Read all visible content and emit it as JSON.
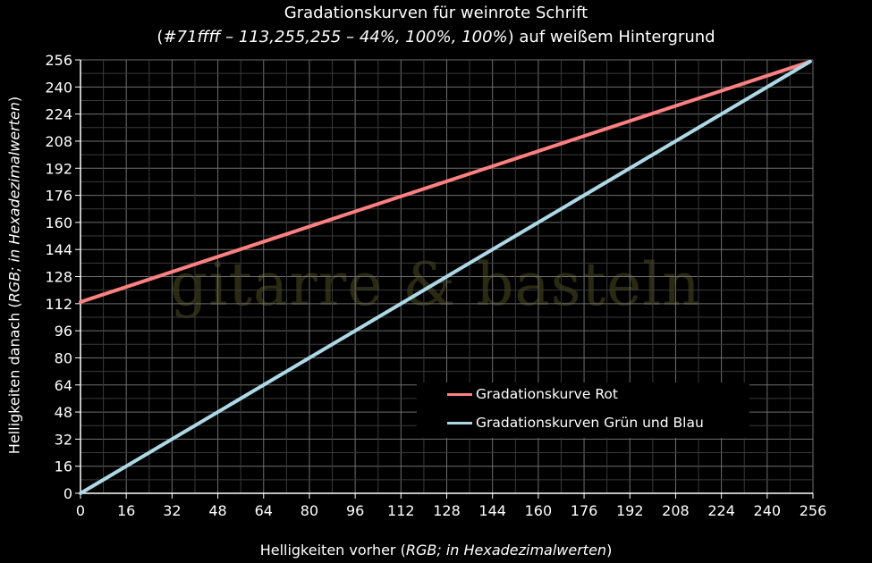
{
  "title_line1": "Gradationskurven für weinrote Schrift",
  "title_line2_prefix": "(",
  "title_line2_italic": "#71ffff – 113,255,255 – 44%, 100%, 100%",
  "title_line2_suffix": ") auf weißem Hintergrund",
  "watermark": "gitarre & basteln",
  "x_label_plain": "Helligkeiten vorher (",
  "x_label_italic": "RGB; in Hexadezimalwerten",
  "x_label_end": ")",
  "y_label_plain": "Helligkeiten danach (",
  "y_label_italic": "RGB; in Hexadezimalwerten",
  "y_label_end": ")",
  "chart_data": {
    "type": "line",
    "xlim": [
      0,
      256
    ],
    "ylim": [
      0,
      256
    ],
    "x_ticks": [
      0,
      16,
      32,
      48,
      64,
      80,
      96,
      112,
      128,
      144,
      160,
      176,
      192,
      208,
      224,
      240,
      256
    ],
    "y_ticks": [
      0,
      16,
      32,
      48,
      64,
      80,
      96,
      112,
      128,
      144,
      160,
      176,
      192,
      208,
      224,
      240,
      256
    ],
    "grid": true,
    "legend_position": "lower-right",
    "series": [
      {
        "name": "Gradationskurve Rot",
        "color": "#ff8080",
        "x": [
          0,
          255
        ],
        "y": [
          113,
          255
        ]
      },
      {
        "name": "Gradationskurven Grün und Blau",
        "color": "#add8e6",
        "x": [
          0,
          255
        ],
        "y": [
          0,
          255
        ]
      }
    ]
  }
}
